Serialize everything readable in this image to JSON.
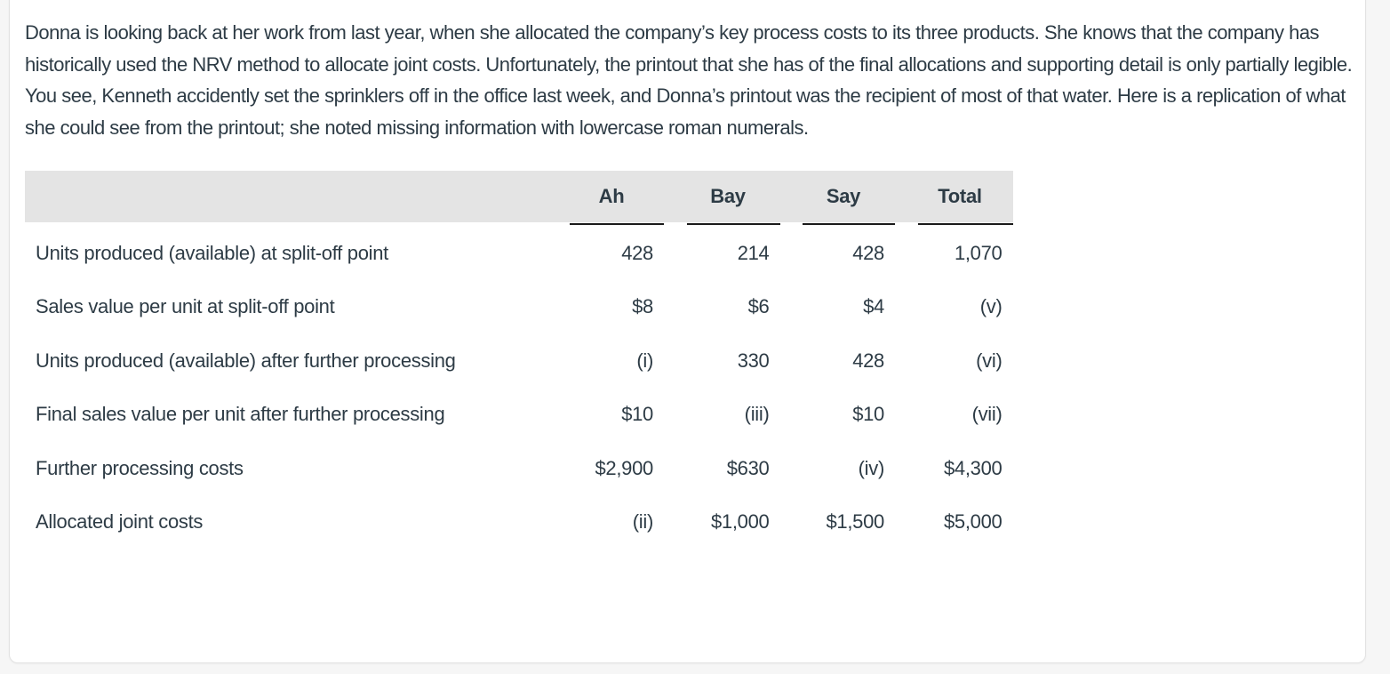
{
  "page": {
    "background_color": "#f6f6f6",
    "card_background": "#ffffff",
    "text_color": "#2d3b45",
    "table_header_background": "#e4e4e4",
    "table_rule_color": "#1a1a1a"
  },
  "intro": {
    "paragraph": "Donna is looking back at her work from last year, when she allocated the company’s key process costs to its three products. She knows that the company has historically used the NRV method to allocate joint costs. Unfortunately, the printout that she has of the final allocations and supporting detail is only partially legible. You see, Kenneth accidently set the sprinklers off in the office last week, and Donna’s printout was the recipient of most of that water. Here is a replication of what she could see from the printout; she noted missing information with lowercase roman numerals."
  },
  "table": {
    "columns": [
      "Ah",
      "Bay",
      "Say",
      "Total"
    ],
    "rows": [
      {
        "label": "Units produced (available) at split-off point",
        "values": [
          "428",
          "214",
          "428",
          "1,070"
        ]
      },
      {
        "label": "Sales value per unit at split-off point",
        "values": [
          "$8",
          "$6",
          "$4",
          "(v)"
        ]
      },
      {
        "label": "Units produced (available) after further processing",
        "values": [
          "(i)",
          "330",
          "428",
          "(vi)"
        ]
      },
      {
        "label": "Final sales value per unit after further processing",
        "values": [
          "$10",
          "(iii)",
          "$10",
          "(vii)"
        ]
      },
      {
        "label": "Further processing costs",
        "values": [
          "$2,900",
          "$630",
          "(iv)",
          "$4,300"
        ]
      },
      {
        "label": "Allocated joint costs",
        "values": [
          "(ii)",
          "$1,000",
          "$1,500",
          "$5,000"
        ]
      }
    ]
  }
}
